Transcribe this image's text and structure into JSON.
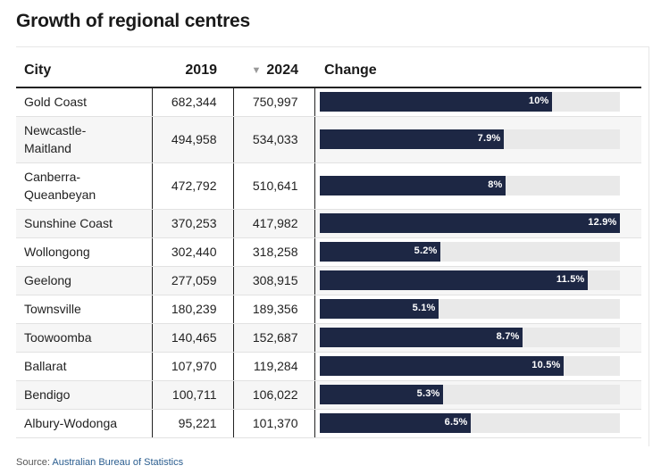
{
  "title": "Growth of regional centres",
  "headers": {
    "city": "City",
    "y2019": "2019",
    "y2024": "2024",
    "change": "Change"
  },
  "sort_icon": "triangle-down-icon",
  "colors": {
    "bar": "#1d2744",
    "track": "#e9e9e9"
  },
  "source": {
    "prefix": "Source:",
    "link": "Australian Bureau of Statistics"
  },
  "chart_data": {
    "type": "table",
    "columns": [
      "City",
      "2019",
      "2024",
      "Change"
    ],
    "sorted_by": "2024",
    "sort_direction": "descending",
    "change_max": 12.9,
    "rows": [
      {
        "city": "Gold Coast",
        "v2019": "682,344",
        "v2024": "750,997",
        "change": 10,
        "change_label": "10%"
      },
      {
        "city": "Newcastle-Maitland",
        "v2019": "494,958",
        "v2024": "534,033",
        "change": 7.9,
        "change_label": "7.9%"
      },
      {
        "city": "Canberra-Queanbeyan",
        "v2019": "472,792",
        "v2024": "510,641",
        "change": 8,
        "change_label": "8%"
      },
      {
        "city": "Sunshine Coast",
        "v2019": "370,253",
        "v2024": "417,982",
        "change": 12.9,
        "change_label": "12.9%"
      },
      {
        "city": "Wollongong",
        "v2019": "302,440",
        "v2024": "318,258",
        "change": 5.2,
        "change_label": "5.2%"
      },
      {
        "city": "Geelong",
        "v2019": "277,059",
        "v2024": "308,915",
        "change": 11.5,
        "change_label": "11.5%"
      },
      {
        "city": "Townsville",
        "v2019": "180,239",
        "v2024": "189,356",
        "change": 5.1,
        "change_label": "5.1%"
      },
      {
        "city": "Toowoomba",
        "v2019": "140,465",
        "v2024": "152,687",
        "change": 8.7,
        "change_label": "8.7%"
      },
      {
        "city": "Ballarat",
        "v2019": "107,970",
        "v2024": "119,284",
        "change": 10.5,
        "change_label": "10.5%"
      },
      {
        "city": "Bendigo",
        "v2019": "100,711",
        "v2024": "106,022",
        "change": 5.3,
        "change_label": "5.3%"
      },
      {
        "city": "Albury-Wodonga",
        "v2019": "95,221",
        "v2024": "101,370",
        "change": 6.5,
        "change_label": "6.5%"
      }
    ]
  }
}
